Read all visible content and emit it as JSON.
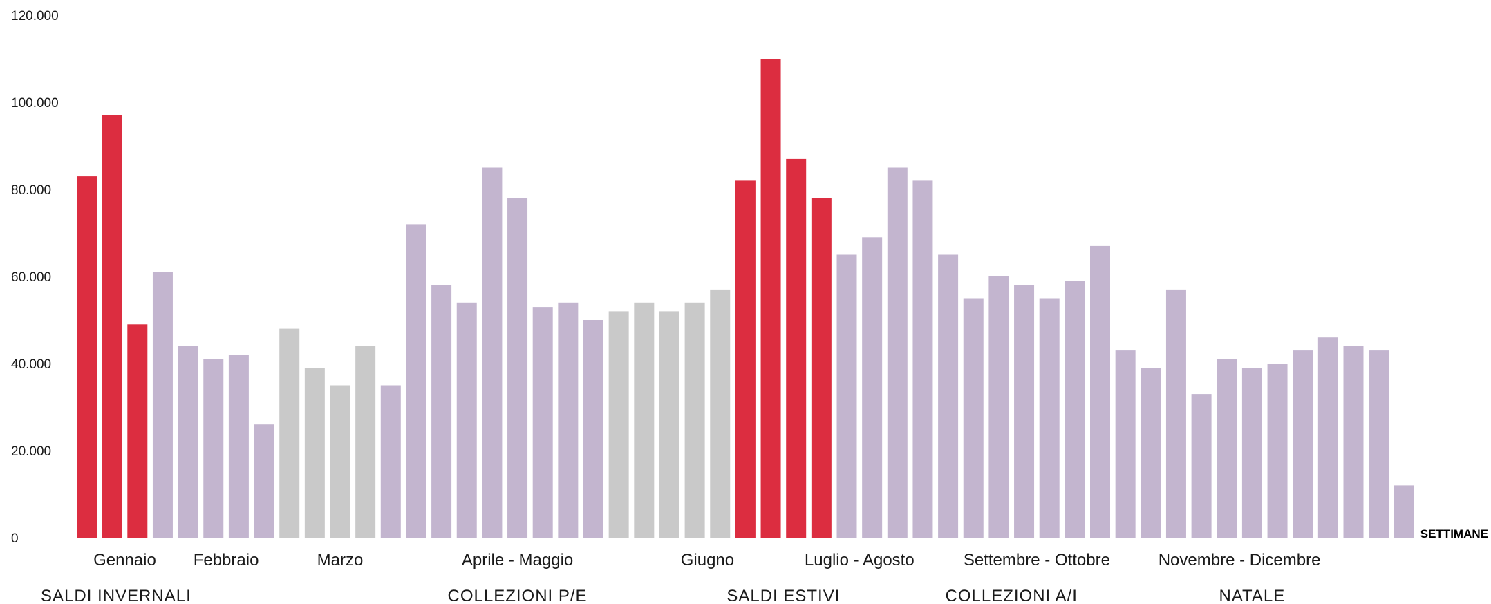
{
  "chart_data": {
    "type": "bar",
    "xlabel": "SETTIMANE",
    "ylabel": "",
    "ylim": [
      0,
      120000
    ],
    "yticks": [
      {
        "value": 0,
        "label": "0"
      },
      {
        "value": 20000,
        "label": "20.000"
      },
      {
        "value": 40000,
        "label": "40.000"
      },
      {
        "value": 60000,
        "label": "60.000"
      },
      {
        "value": 80000,
        "label": "80.000"
      },
      {
        "value": 100000,
        "label": "100.000"
      },
      {
        "value": 120000,
        "label": "120.000"
      }
    ],
    "grid": false,
    "colors": {
      "red": "#dc2d40",
      "purple": "#c3b5cf",
      "grey": "#c9c9c9"
    },
    "values": [
      83000,
      97000,
      49000,
      61000,
      44000,
      41000,
      42000,
      26000,
      48000,
      39000,
      35000,
      44000,
      35000,
      72000,
      58000,
      54000,
      85000,
      78000,
      53000,
      54000,
      50000,
      52000,
      54000,
      52000,
      54000,
      57000,
      82000,
      110000,
      87000,
      78000,
      65000,
      69000,
      85000,
      82000,
      65000,
      55000,
      60000,
      58000,
      55000,
      59000,
      67000,
      43000,
      39000,
      57000,
      33000,
      41000,
      39000,
      40000,
      43000,
      46000,
      44000,
      43000,
      12000
    ],
    "bar_colors": [
      "red",
      "red",
      "red",
      "purple",
      "purple",
      "purple",
      "purple",
      "purple",
      "grey",
      "grey",
      "grey",
      "grey",
      "purple",
      "purple",
      "purple",
      "purple",
      "purple",
      "purple",
      "purple",
      "purple",
      "purple",
      "grey",
      "grey",
      "grey",
      "grey",
      "grey",
      "red",
      "red",
      "red",
      "red",
      "purple",
      "purple",
      "purple",
      "purple",
      "purple",
      "purple",
      "purple",
      "purple",
      "purple",
      "purple",
      "purple",
      "purple",
      "purple",
      "purple",
      "purple",
      "purple",
      "purple",
      "purple",
      "purple",
      "purple",
      "purple",
      "purple",
      "purple"
    ],
    "month_labels": [
      {
        "label": "Gennaio",
        "bar": 1.5
      },
      {
        "label": "Febbraio",
        "bar": 5.5
      },
      {
        "label": "Marzo",
        "bar": 10
      },
      {
        "label": "Aprile - Maggio",
        "bar": 17
      },
      {
        "label": "Giugno",
        "bar": 24.5
      },
      {
        "label": "Luglio - Agosto",
        "bar": 30.5
      },
      {
        "label": "Settembre - Ottobre",
        "bar": 37.5
      },
      {
        "label": "Novembre - Dicembre",
        "bar": 45.5
      }
    ],
    "phase_labels": [
      {
        "label": "SALDI INVERNALI",
        "bar": 0.5,
        "align": "start"
      },
      {
        "label": "COLLEZIONI P/E",
        "bar": 17,
        "align": "middle"
      },
      {
        "label": "SALDI ESTIVI",
        "bar": 27.5,
        "align": "middle"
      },
      {
        "label": "COLLEZIONI A/I",
        "bar": 36.5,
        "align": "middle"
      },
      {
        "label": "NATALE",
        "bar": 46,
        "align": "middle"
      }
    ]
  }
}
